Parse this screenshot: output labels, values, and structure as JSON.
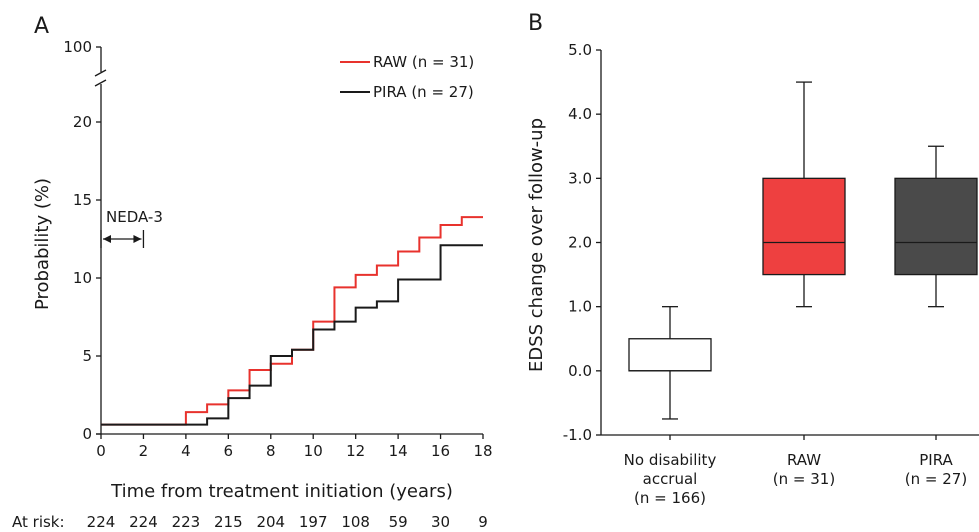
{
  "chart_data": [
    {
      "panel": "A",
      "type": "line",
      "xlabel": "Time from treatment initiation (years)",
      "ylabel": "Probability (%)",
      "xlim": [
        0,
        18
      ],
      "ylim": [
        0,
        20
      ],
      "y_break_label": "100",
      "xticks": [
        0,
        2,
        4,
        6,
        8,
        10,
        12,
        14,
        16,
        18
      ],
      "yticks": [
        0,
        5,
        10,
        15,
        20
      ],
      "legend_position": "top-right",
      "annotation": {
        "label": "NEDA-3",
        "x_from": 0,
        "x_to": 2,
        "y": 12.5
      },
      "series": [
        {
          "name": "RAW (n = 31)",
          "color": "#e8322d",
          "step": true,
          "x": [
            0,
            4,
            5,
            6,
            7,
            8,
            9,
            10,
            11,
            12,
            13,
            14,
            15,
            16,
            17,
            18
          ],
          "y": [
            0.6,
            1.4,
            1.9,
            2.8,
            4.1,
            4.5,
            5.4,
            7.2,
            9.4,
            10.2,
            10.8,
            11.7,
            12.6,
            13.4,
            13.9,
            13.9
          ]
        },
        {
          "name": "PIRA (n = 27)",
          "color": "#1a1a1a",
          "step": true,
          "x": [
            0,
            4,
            5,
            6,
            7,
            8,
            9,
            10,
            11,
            12,
            13,
            14,
            15,
            16,
            18
          ],
          "y": [
            0.6,
            0.6,
            1.0,
            2.3,
            3.1,
            5.0,
            5.4,
            6.7,
            7.2,
            8.1,
            8.5,
            9.9,
            9.9,
            12.1,
            12.1
          ]
        }
      ],
      "at_risk": {
        "label": "At risk:",
        "values": [
          "224",
          "224",
          "223",
          "215",
          "204",
          "197",
          "108",
          "59",
          "30",
          "9"
        ]
      }
    },
    {
      "panel": "B",
      "type": "box",
      "ylabel": "EDSS change over follow-up",
      "ylim": [
        -1.0,
        5.0
      ],
      "yticks": [
        "-1.0",
        "0.0",
        "1.0",
        "2.0",
        "3.0",
        "4.0",
        "5.0"
      ],
      "categories": [
        {
          "lines": [
            "No disability",
            "accrual",
            "(n = 166)"
          ]
        },
        {
          "lines": [
            "RAW",
            "(n = 31)"
          ]
        },
        {
          "lines": [
            "PIRA",
            "(n = 27)"
          ]
        }
      ],
      "boxes": [
        {
          "min": -0.75,
          "q1": 0.0,
          "median": 0.0,
          "q3": 0.5,
          "max": 1.0,
          "fill": "#ffffff"
        },
        {
          "min": 1.0,
          "q1": 1.5,
          "median": 2.0,
          "q3": 3.0,
          "max": 4.5,
          "fill": "#ee4040"
        },
        {
          "min": 1.0,
          "q1": 1.5,
          "median": 2.0,
          "q3": 3.0,
          "max": 3.5,
          "fill": "#4a4a4a"
        }
      ]
    }
  ],
  "panels": {
    "a": "A",
    "b": "B"
  }
}
